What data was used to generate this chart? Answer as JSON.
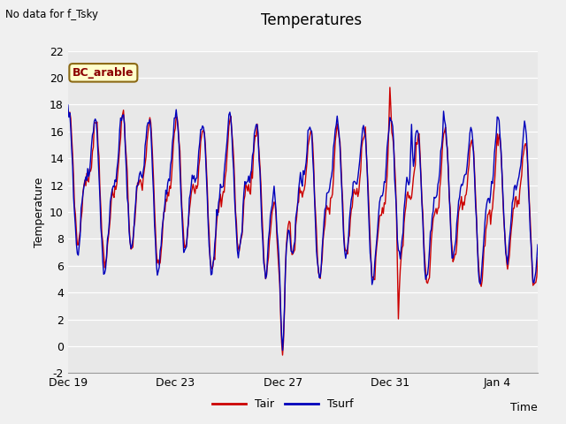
{
  "title": "Temperatures",
  "top_left_text": "No data for f_Tsky",
  "ylabel": "Temperature",
  "xlabel": "Time",
  "ylim": [
    -2,
    22
  ],
  "yticks": [
    -2,
    0,
    2,
    4,
    6,
    8,
    10,
    12,
    14,
    16,
    18,
    20,
    22
  ],
  "xtick_labels": [
    "Dec 19",
    "Dec 23",
    "Dec 27",
    "Dec 31",
    "Jan 4"
  ],
  "xtick_positions": [
    0,
    4,
    8,
    12,
    16
  ],
  "xlim": [
    0,
    17.5
  ],
  "annotation_text": "BC_arable",
  "legend_labels": [
    "Tair",
    "Tsurf"
  ],
  "tair_color": "#cc0000",
  "tsurf_color": "#0000bb",
  "background_color": "#e8e8e8",
  "fig_background": "#f0f0f0",
  "line_width": 1.0,
  "n_points": 500
}
